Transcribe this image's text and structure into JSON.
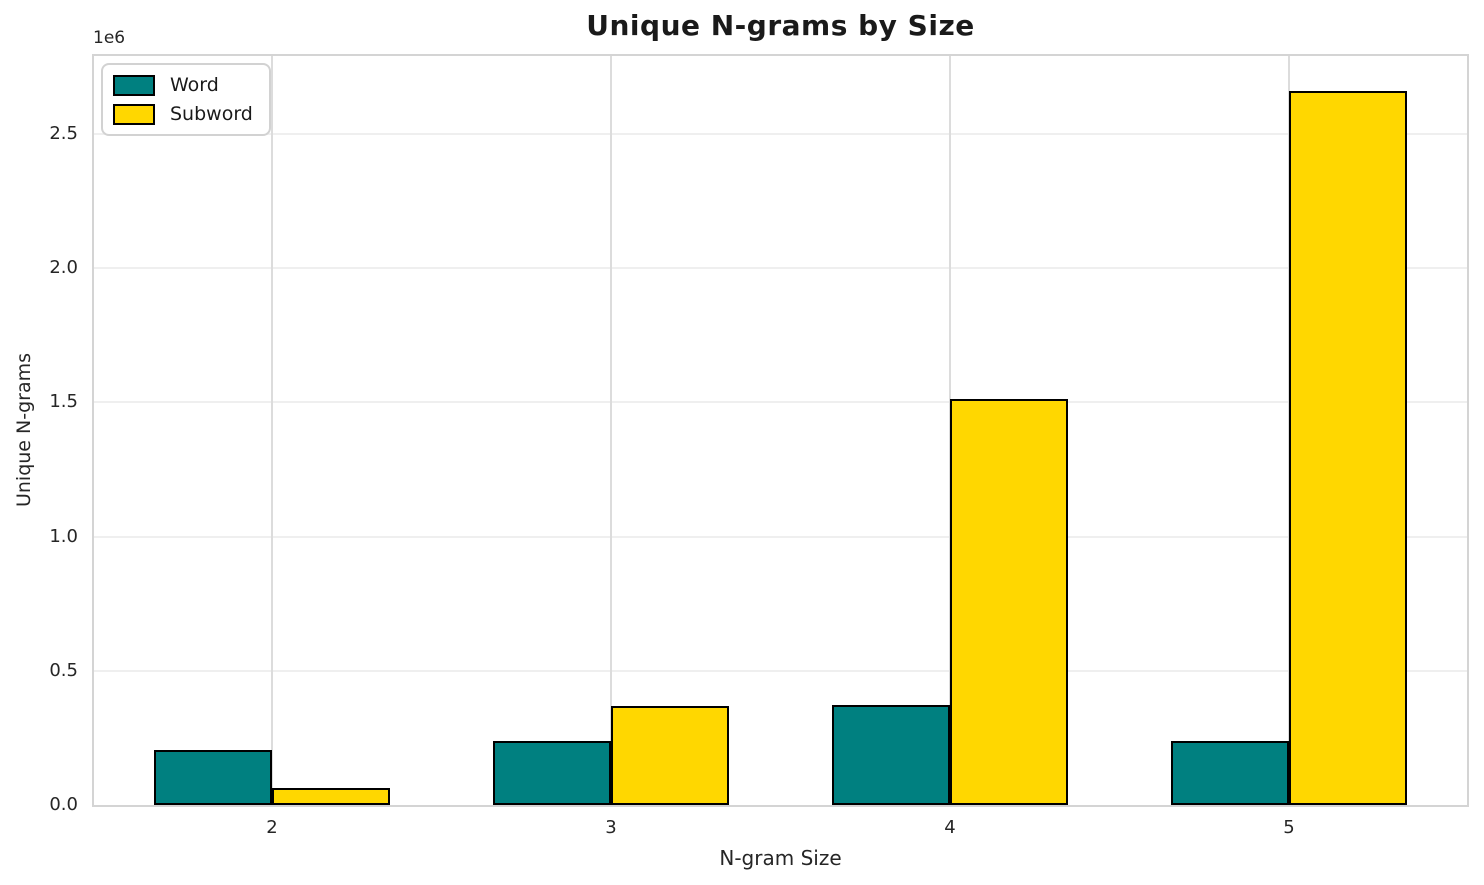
{
  "chart_data": {
    "type": "bar",
    "title": "Unique N-grams by Size",
    "xlabel": "N-gram Size",
    "ylabel": "Unique N-grams",
    "y_offset_label": "1e6",
    "categories": [
      "2",
      "3",
      "4",
      "5"
    ],
    "series": [
      {
        "name": "Word",
        "color": "#008080",
        "values": [
          205000,
          237000,
          372000,
          237000
        ]
      },
      {
        "name": "Subword",
        "color": "#FFD700",
        "values": [
          62000,
          370000,
          1512000,
          2660000
        ]
      }
    ],
    "bar_edge_color": "#000000",
    "ylim": [
      0,
      2790000
    ],
    "yticks": [
      {
        "value": 0,
        "label": "0.0"
      },
      {
        "value": 500000,
        "label": "0.5"
      },
      {
        "value": 1000000,
        "label": "1.0"
      },
      {
        "value": 1500000,
        "label": "1.5"
      },
      {
        "value": 2000000,
        "label": "2.0"
      },
      {
        "value": 2500000,
        "label": "2.5"
      }
    ],
    "grid": true,
    "legend_position": "upper-left"
  }
}
